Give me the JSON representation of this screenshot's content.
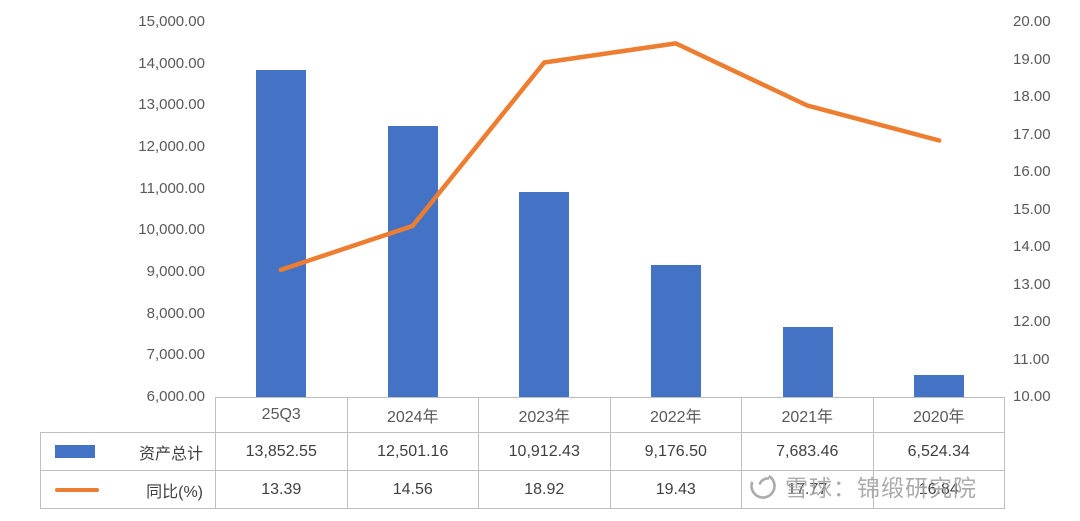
{
  "watermark": {
    "text": "雪球：锦缎研究院"
  },
  "chart_data": {
    "type": "combo-bar-line",
    "title": "",
    "categories": [
      "25Q3",
      "2024年",
      "2023年",
      "2022年",
      "2021年",
      "2020年"
    ],
    "series": [
      {
        "name": "资产总计",
        "type": "bar",
        "axis": "left",
        "color": "#4472C4",
        "values": [
          13852.55,
          12501.16,
          10912.43,
          9176.5,
          7683.46,
          6524.34
        ],
        "labels": [
          "13,852.55",
          "12,501.16",
          "10,912.43",
          "9,176.50",
          "7,683.46",
          "6,524.34"
        ]
      },
      {
        "name": "同比(%)",
        "type": "line",
        "axis": "right",
        "color": "#ED7D31",
        "values": [
          13.39,
          14.56,
          18.92,
          19.43,
          17.77,
          16.84
        ],
        "labels": [
          "13.39",
          "14.56",
          "18.92",
          "19.43",
          "17.77",
          "16.84"
        ]
      }
    ],
    "left_axis": {
      "min": 6000,
      "max": 15000,
      "step": 1000,
      "ticks": [
        "15,000.00",
        "14,000.00",
        "13,000.00",
        "12,000.00",
        "11,000.00",
        "10,000.00",
        "9,000.00",
        "8,000.00",
        "7,000.00",
        "6,000.00"
      ]
    },
    "right_axis": {
      "min": 10,
      "max": 20,
      "step": 1,
      "ticks": [
        "20.00",
        "19.00",
        "18.00",
        "17.00",
        "16.00",
        "15.00",
        "14.00",
        "13.00",
        "12.00",
        "11.00",
        "10.00"
      ]
    },
    "grid": false,
    "legend_position": "table-left",
    "border_color": "#bfbfbf"
  }
}
